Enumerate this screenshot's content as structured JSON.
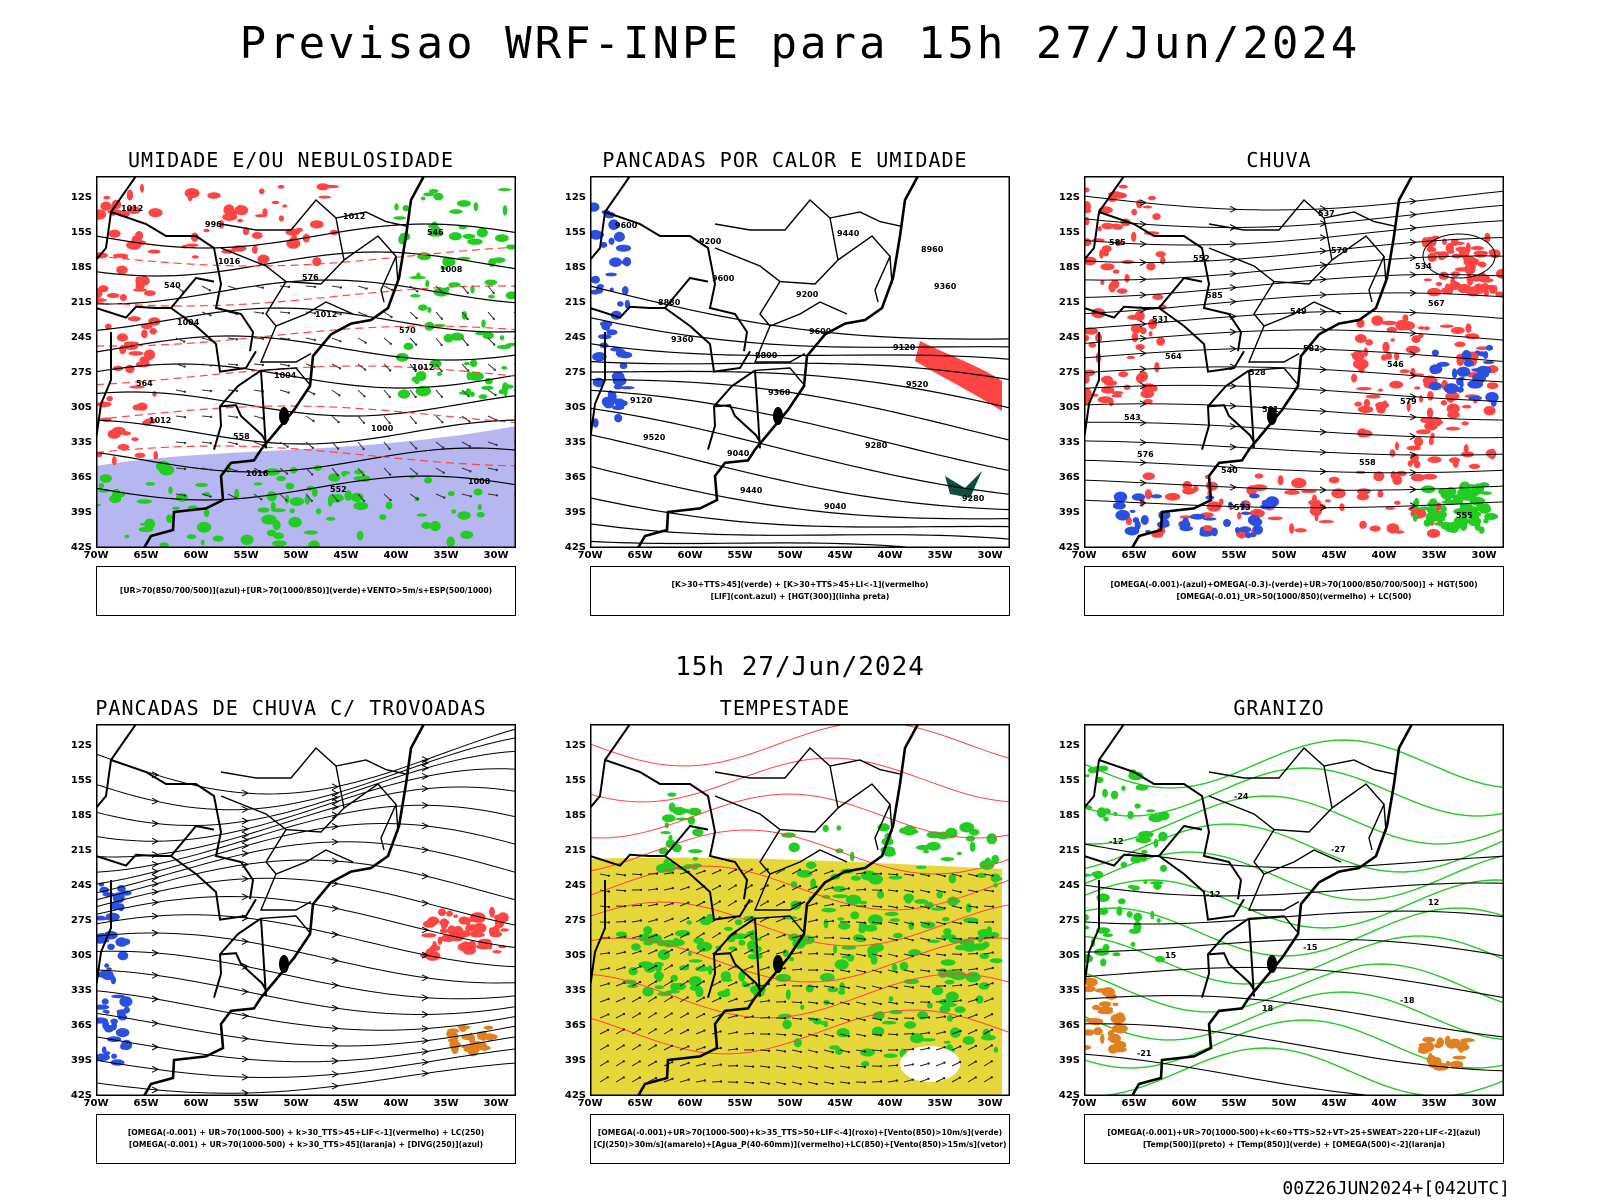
{
  "title": "Previsao WRF-INPE  para 15h 27/Jun/2024",
  "mid_title": "15h 27/Jun/2024",
  "footer": "00Z26JUN2024+[042UTC]",
  "lat_labels": [
    "12S",
    "15S",
    "18S",
    "21S",
    "24S",
    "27S",
    "30S",
    "33S",
    "36S",
    "39S",
    "42S"
  ],
  "lon_labels": [
    "70W",
    "65W",
    "60W",
    "55W",
    "50W",
    "45W",
    "40W",
    "35W",
    "30W"
  ],
  "panels": [
    {
      "title": "UMIDADE E/OU NEBULOSIDADE",
      "legend": [
        "[UR>70(850/700/500)](azul)+[UR>70(1000/850)](verde)+VENTO>5m/s+ESP(500/1000)"
      ],
      "contour_labels": [
        "1012",
        "1016",
        "1012",
        "1012",
        "1012",
        "1016",
        "1012",
        "1008",
        "1004",
        "1004",
        "1000",
        "1000",
        "996",
        "576",
        "570",
        "564",
        "558",
        "552",
        "546",
        "540"
      ]
    },
    {
      "title": "PANCADAS POR CALOR E UMIDADE",
      "legend": [
        "[K>30+TTS>45](verde) + [K>30+TTS>45+LI<-1](vermelho)",
        "[LIF](cont.azul) + [HGT(300)](linha preta)"
      ],
      "contour_labels": [
        "9600",
        "9600",
        "9600",
        "9520",
        "9520",
        "9440",
        "9440",
        "9360",
        "9360",
        "9360",
        "9280",
        "9280",
        "9200",
        "9200",
        "9120",
        "9120",
        "9040",
        "9040",
        "8960",
        "8880",
        "8800"
      ]
    },
    {
      "title": "CHUVA",
      "legend": [
        "[OMEGA(-0.001)-(azul)+OMEGA(-0.3)-(verde)+UR>70(1000/850/700/500)] + HGT(500)",
        "[OMEGA(-0.01)_UR>50(1000/850)(vermelho) + LC(500)"
      ],
      "contour_labels": [
        "585",
        "585",
        "582",
        "579",
        "576",
        "573",
        "570",
        "567",
        "564",
        "561",
        "558",
        "555",
        "552",
        "549",
        "546",
        "543",
        "540",
        "537",
        "534",
        "531",
        "528"
      ]
    },
    {
      "title": "PANCADAS DE CHUVA C/ TROVOADAS",
      "legend": [
        "[OMEGA(-0.001) + UR>70(1000-500) + k>30_TTS>45+LIF<-1](vermelho) + LC(250)",
        "[OMEGA(-0.001) + UR>70(1000-500) + k>30_TTS>45](laranja) + [DIVG(250)](azul)"
      ],
      "contour_labels": []
    },
    {
      "title": "TEMPESTADE",
      "legend": [
        "[OMEGA(-0.001)+UR>70(1000-500)+k>35_TTS>50+LIF<-4](roxo)+[Vento(850)>10m/s](verde)",
        "[CJ(250)>30m/s](amarelo)+[Agua_P(40-60mm)](vermelho)+LC(850)+[Vento(850)>15m/s](vetor)"
      ],
      "contour_labels": []
    },
    {
      "title": "GRANIZO",
      "legend": [
        "[OMEGA(-0.001)+UR>70(1000-500)+k<60+TTS>52+VT>25+SWEAT>220+LIF<-2](azul)",
        "[Temp(500)](preto) + [Temp(850)](verde) + [OMEGA(500)<-2](laranja)"
      ],
      "contour_labels": [
        "-12",
        "-12",
        "-15",
        "-18",
        "-21",
        "-24",
        "-27",
        "12",
        "15",
        "18"
      ]
    }
  ],
  "colors": {
    "blue": "#2b4fe0",
    "green": "#22cc22",
    "red": "#ff4444",
    "orange": "#e08020",
    "yellow": "#e6d83a",
    "lavender": "#a9a9ef",
    "black": "#000000"
  }
}
